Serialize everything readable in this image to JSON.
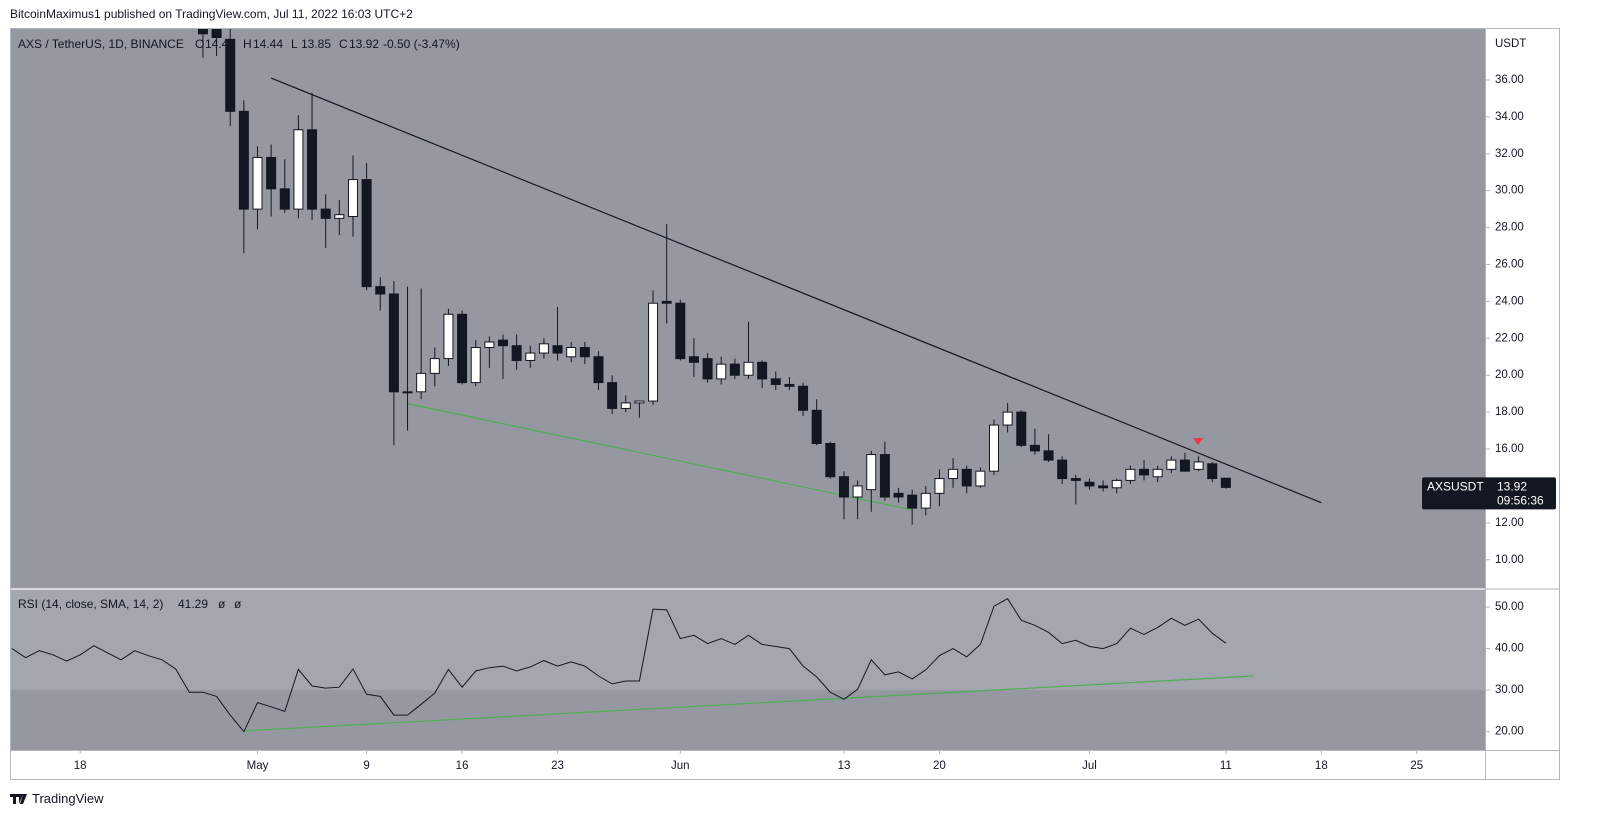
{
  "page": {
    "published": "BitcoinMaximus1 published on TradingView.com, Jul 11, 2022 16:03 UTC+2",
    "footer": "TradingView"
  },
  "chart_data": [
    {
      "type": "candlestick",
      "symbol": "AXS / TetherUS, 1D, BINANCE",
      "ohlc_labels": [
        "O",
        "H",
        "L",
        "C"
      ],
      "change": "-0.50 (-3.47%)",
      "unit": "USDT",
      "ticker": "AXSUSDT",
      "countdown": "09:56:36",
      "up_color": "#ffffff",
      "down_color": "#131722",
      "x": [
        "2022-04-27",
        "2022-04-28",
        "2022-04-29",
        "2022-04-30",
        "2022-05-01",
        "2022-05-02",
        "2022-05-03",
        "2022-05-04",
        "2022-05-05",
        "2022-05-06",
        "2022-05-07",
        "2022-05-08",
        "2022-05-09",
        "2022-05-10",
        "2022-05-11",
        "2022-05-12",
        "2022-05-13",
        "2022-05-14",
        "2022-05-15",
        "2022-05-16",
        "2022-05-17",
        "2022-05-18",
        "2022-05-19",
        "2022-05-20",
        "2022-05-21",
        "2022-05-22",
        "2022-05-23",
        "2022-05-24",
        "2022-05-25",
        "2022-05-26",
        "2022-05-27",
        "2022-05-28",
        "2022-05-29",
        "2022-05-30",
        "2022-05-31",
        "2022-06-01",
        "2022-06-02",
        "2022-06-03",
        "2022-06-04",
        "2022-06-05",
        "2022-06-06",
        "2022-06-07",
        "2022-06-08",
        "2022-06-09",
        "2022-06-10",
        "2022-06-11",
        "2022-06-12",
        "2022-06-13",
        "2022-06-14",
        "2022-06-15",
        "2022-06-16",
        "2022-06-17",
        "2022-06-18",
        "2022-06-19",
        "2022-06-20",
        "2022-06-21",
        "2022-06-22",
        "2022-06-23",
        "2022-06-24",
        "2022-06-25",
        "2022-06-26",
        "2022-06-27",
        "2022-06-28",
        "2022-06-29",
        "2022-06-30",
        "2022-07-01",
        "2022-07-02",
        "2022-07-03",
        "2022-07-04",
        "2022-07-05",
        "2022-07-06",
        "2022-07-07",
        "2022-07-08",
        "2022-07-09",
        "2022-07-10",
        "2022-07-11"
      ],
      "open": [
        39.5,
        39.5,
        38.2,
        34.3,
        29.0,
        31.8,
        30.1,
        29.0,
        33.3,
        29.0,
        28.5,
        28.6,
        30.6,
        24.8,
        24.4,
        19.1,
        19.1,
        20.1,
        20.9,
        23.3,
        19.6,
        21.5,
        21.9,
        21.6,
        20.8,
        21.2,
        21.6,
        21.0,
        21.5,
        21.0,
        19.6,
        18.2,
        18.5,
        18.6,
        24.0,
        23.9,
        21.0,
        20.9,
        19.8,
        20.6,
        20.0,
        20.7,
        19.8,
        19.5,
        19.4,
        18.1,
        16.3,
        14.5,
        13.4,
        13.8,
        15.7,
        13.6,
        13.5,
        12.8,
        13.6,
        14.4,
        14.9,
        14.0,
        14.8,
        17.3,
        18.0,
        16.2,
        15.9,
        15.4,
        14.4,
        14.2,
        14.0,
        13.9,
        14.3,
        14.9,
        14.5,
        14.9,
        15.4,
        14.9,
        15.2,
        14.42
      ],
      "high": [
        40.2,
        40.0,
        39.0,
        34.9,
        32.4,
        32.5,
        31.7,
        34.1,
        35.3,
        29.8,
        29.5,
        31.9,
        31.5,
        25.3,
        25.1,
        24.8,
        24.7,
        21.5,
        23.6,
        23.5,
        21.9,
        22.1,
        22.2,
        22.2,
        21.6,
        22.0,
        23.7,
        21.8,
        21.8,
        21.3,
        20.0,
        18.9,
        18.6,
        24.6,
        28.2,
        24.1,
        22.0,
        21.2,
        21.0,
        20.9,
        22.9,
        20.8,
        20.2,
        19.9,
        19.6,
        18.7,
        16.4,
        14.8,
        14.3,
        15.9,
        16.4,
        13.9,
        13.8,
        14.0,
        14.9,
        15.5,
        15.1,
        15.0,
        17.6,
        18.5,
        18.1,
        17.1,
        16.8,
        15.6,
        14.6,
        14.4,
        14.3,
        14.4,
        15.1,
        15.4,
        15.1,
        15.6,
        15.8,
        15.6,
        15.3,
        14.44
      ],
      "low": [
        37.2,
        37.3,
        33.5,
        26.6,
        27.9,
        28.6,
        28.8,
        28.5,
        28.4,
        26.9,
        27.6,
        27.5,
        24.6,
        23.5,
        16.2,
        17.0,
        18.7,
        19.4,
        20.5,
        19.5,
        19.4,
        20.4,
        19.8,
        20.3,
        20.4,
        20.9,
        20.8,
        20.7,
        20.6,
        19.2,
        17.9,
        18.0,
        17.7,
        18.4,
        22.8,
        20.8,
        19.9,
        19.6,
        19.5,
        19.8,
        19.8,
        19.3,
        19.2,
        19.2,
        17.8,
        16.2,
        14.4,
        12.2,
        12.2,
        12.6,
        13.2,
        13.1,
        11.9,
        12.4,
        12.9,
        13.9,
        13.6,
        13.9,
        14.6,
        16.9,
        16.1,
        15.7,
        15.3,
        14.1,
        13.0,
        13.8,
        13.7,
        13.6,
        14.1,
        14.3,
        14.2,
        14.7,
        14.8,
        14.8,
        14.2,
        13.85
      ],
      "close": [
        38.5,
        38.3,
        34.3,
        29.0,
        31.8,
        30.1,
        29.0,
        33.3,
        29.0,
        28.5,
        28.7,
        30.6,
        24.8,
        24.4,
        19.1,
        19.1,
        20.1,
        20.9,
        23.3,
        19.6,
        21.5,
        21.8,
        21.6,
        20.8,
        21.2,
        21.7,
        21.2,
        21.5,
        21.0,
        19.6,
        18.2,
        18.5,
        18.6,
        23.9,
        23.9,
        20.9,
        20.7,
        19.8,
        20.6,
        20.0,
        20.7,
        19.8,
        19.5,
        19.4,
        18.1,
        16.3,
        14.5,
        13.4,
        14.0,
        15.7,
        13.4,
        13.4,
        12.8,
        13.6,
        14.4,
        14.9,
        14.0,
        14.8,
        17.3,
        18.0,
        16.2,
        15.9,
        15.4,
        14.4,
        14.3,
        14.0,
        13.9,
        14.3,
        14.9,
        14.6,
        14.9,
        15.4,
        14.8,
        15.3,
        14.4,
        13.92
      ],
      "xlim": [
        "2022-04-13",
        "2022-07-30"
      ],
      "xticks": [
        {
          "value": "2022-04-18",
          "label": "18"
        },
        {
          "value": "2022-05-01",
          "label": "May"
        },
        {
          "value": "2022-05-09",
          "label": "9"
        },
        {
          "value": "2022-05-16",
          "label": "16"
        },
        {
          "value": "2022-05-23",
          "label": "23"
        },
        {
          "value": "2022-06-01",
          "label": "Jun"
        },
        {
          "value": "2022-06-13",
          "label": "13"
        },
        {
          "value": "2022-06-20",
          "label": "20"
        },
        {
          "value": "2022-07-01",
          "label": "Jul"
        },
        {
          "value": "2022-07-11",
          "label": "11"
        },
        {
          "value": "2022-07-18",
          "label": "18"
        },
        {
          "value": "2022-07-25",
          "label": "25"
        }
      ],
      "ylim": [
        8.47,
        38.76
      ],
      "yticks": [
        {
          "value": 10,
          "label": "10.00"
        },
        {
          "value": 12,
          "label": "12.00"
        },
        {
          "value": 14,
          "label": "14.00"
        },
        {
          "value": 16,
          "label": "16.00"
        },
        {
          "value": 18,
          "label": "18.00"
        },
        {
          "value": 20,
          "label": "20.00"
        },
        {
          "value": 22,
          "label": "22.00"
        },
        {
          "value": 24,
          "label": "24.00"
        },
        {
          "value": 26,
          "label": "26.00"
        },
        {
          "value": 28,
          "label": "28.00"
        },
        {
          "value": 30,
          "label": "30.00"
        },
        {
          "value": 32,
          "label": "32.00"
        },
        {
          "value": 34,
          "label": "34.00"
        },
        {
          "value": 36,
          "label": "36.00"
        }
      ],
      "trendlines": [
        {
          "x": [
            "2022-05-02",
            "2022-07-18"
          ],
          "y": [
            36.1,
            13.09
          ],
          "color": "#131722"
        },
        {
          "x": [
            "2022-05-12",
            "2022-06-18"
          ],
          "y": [
            18.46,
            12.7
          ],
          "color": "#4caf50"
        }
      ]
    },
    {
      "type": "line",
      "title": "RSI (14, close, SMA, 14, 2)",
      "extra_labels": [
        "ø",
        "ø"
      ],
      "color": "#131722",
      "band": [
        30,
        70
      ],
      "band_color": "#a3a6ae",
      "x": [
        "2022-04-13",
        "2022-04-14",
        "2022-04-15",
        "2022-04-16",
        "2022-04-17",
        "2022-04-18",
        "2022-04-19",
        "2022-04-20",
        "2022-04-21",
        "2022-04-22",
        "2022-04-23",
        "2022-04-24",
        "2022-04-25",
        "2022-04-26",
        "2022-04-27",
        "2022-04-28",
        "2022-04-29",
        "2022-04-30",
        "2022-05-01",
        "2022-05-02",
        "2022-05-03",
        "2022-05-04",
        "2022-05-05",
        "2022-05-06",
        "2022-05-07",
        "2022-05-08",
        "2022-05-09",
        "2022-05-10",
        "2022-05-11",
        "2022-05-12",
        "2022-05-13",
        "2022-05-14",
        "2022-05-15",
        "2022-05-16",
        "2022-05-17",
        "2022-05-18",
        "2022-05-19",
        "2022-05-20",
        "2022-05-21",
        "2022-05-22",
        "2022-05-23",
        "2022-05-24",
        "2022-05-25",
        "2022-05-26",
        "2022-05-27",
        "2022-05-28",
        "2022-05-29",
        "2022-05-30",
        "2022-05-31",
        "2022-06-01",
        "2022-06-02",
        "2022-06-03",
        "2022-06-04",
        "2022-06-05",
        "2022-06-06",
        "2022-06-07",
        "2022-06-08",
        "2022-06-09",
        "2022-06-10",
        "2022-06-11",
        "2022-06-12",
        "2022-06-13",
        "2022-06-14",
        "2022-06-15",
        "2022-06-16",
        "2022-06-17",
        "2022-06-18",
        "2022-06-19",
        "2022-06-20",
        "2022-06-21",
        "2022-06-22",
        "2022-06-23",
        "2022-06-24",
        "2022-06-25",
        "2022-06-26",
        "2022-06-27",
        "2022-06-28",
        "2022-06-29",
        "2022-06-30",
        "2022-07-01",
        "2022-07-02",
        "2022-07-03",
        "2022-07-04",
        "2022-07-05",
        "2022-07-06",
        "2022-07-07",
        "2022-07-08",
        "2022-07-09",
        "2022-07-10",
        "2022-07-11"
      ],
      "values": [
        40,
        37.8,
        39.5,
        38.5,
        37,
        38.5,
        40.7,
        39,
        37.3,
        39.5,
        38.3,
        37.3,
        35.1,
        29.5,
        29.5,
        28.5,
        24,
        20,
        27,
        26,
        24.9,
        35,
        31,
        30.5,
        30.7,
        35.1,
        29,
        28.5,
        24,
        24,
        26.6,
        29.3,
        35,
        30.7,
        34.6,
        35.4,
        35.8,
        34.6,
        35.6,
        37.1,
        35.8,
        36.8,
        35.8,
        33.4,
        31.5,
        32.2,
        32.2,
        49.5,
        49.3,
        42.4,
        43.2,
        41.2,
        42.4,
        41,
        43.2,
        41,
        40.5,
        40,
        35.8,
        33.2,
        29.5,
        27.8,
        30.2,
        37.3,
        33.7,
        34.4,
        32.7,
        34.9,
        38.3,
        40,
        38,
        41,
        50.2,
        52,
        46.8,
        45.6,
        43.9,
        41.2,
        42,
        40.5,
        40,
        41.2,
        44.9,
        43.4,
        45.1,
        47.3,
        45.6,
        47.1,
        43.7,
        41.29
      ],
      "ylim": [
        15.6,
        54.1
      ],
      "yticks": [
        {
          "value": 20,
          "label": "20.00"
        },
        {
          "value": 30,
          "label": "30.00"
        },
        {
          "value": 40,
          "label": "40.00"
        },
        {
          "value": 50,
          "label": "50.00"
        }
      ],
      "trendlines": [
        {
          "x": [
            "2022-04-30",
            "2022-07-13"
          ],
          "y": [
            20.2,
            33.4
          ],
          "color": "#4caf50"
        }
      ]
    }
  ]
}
